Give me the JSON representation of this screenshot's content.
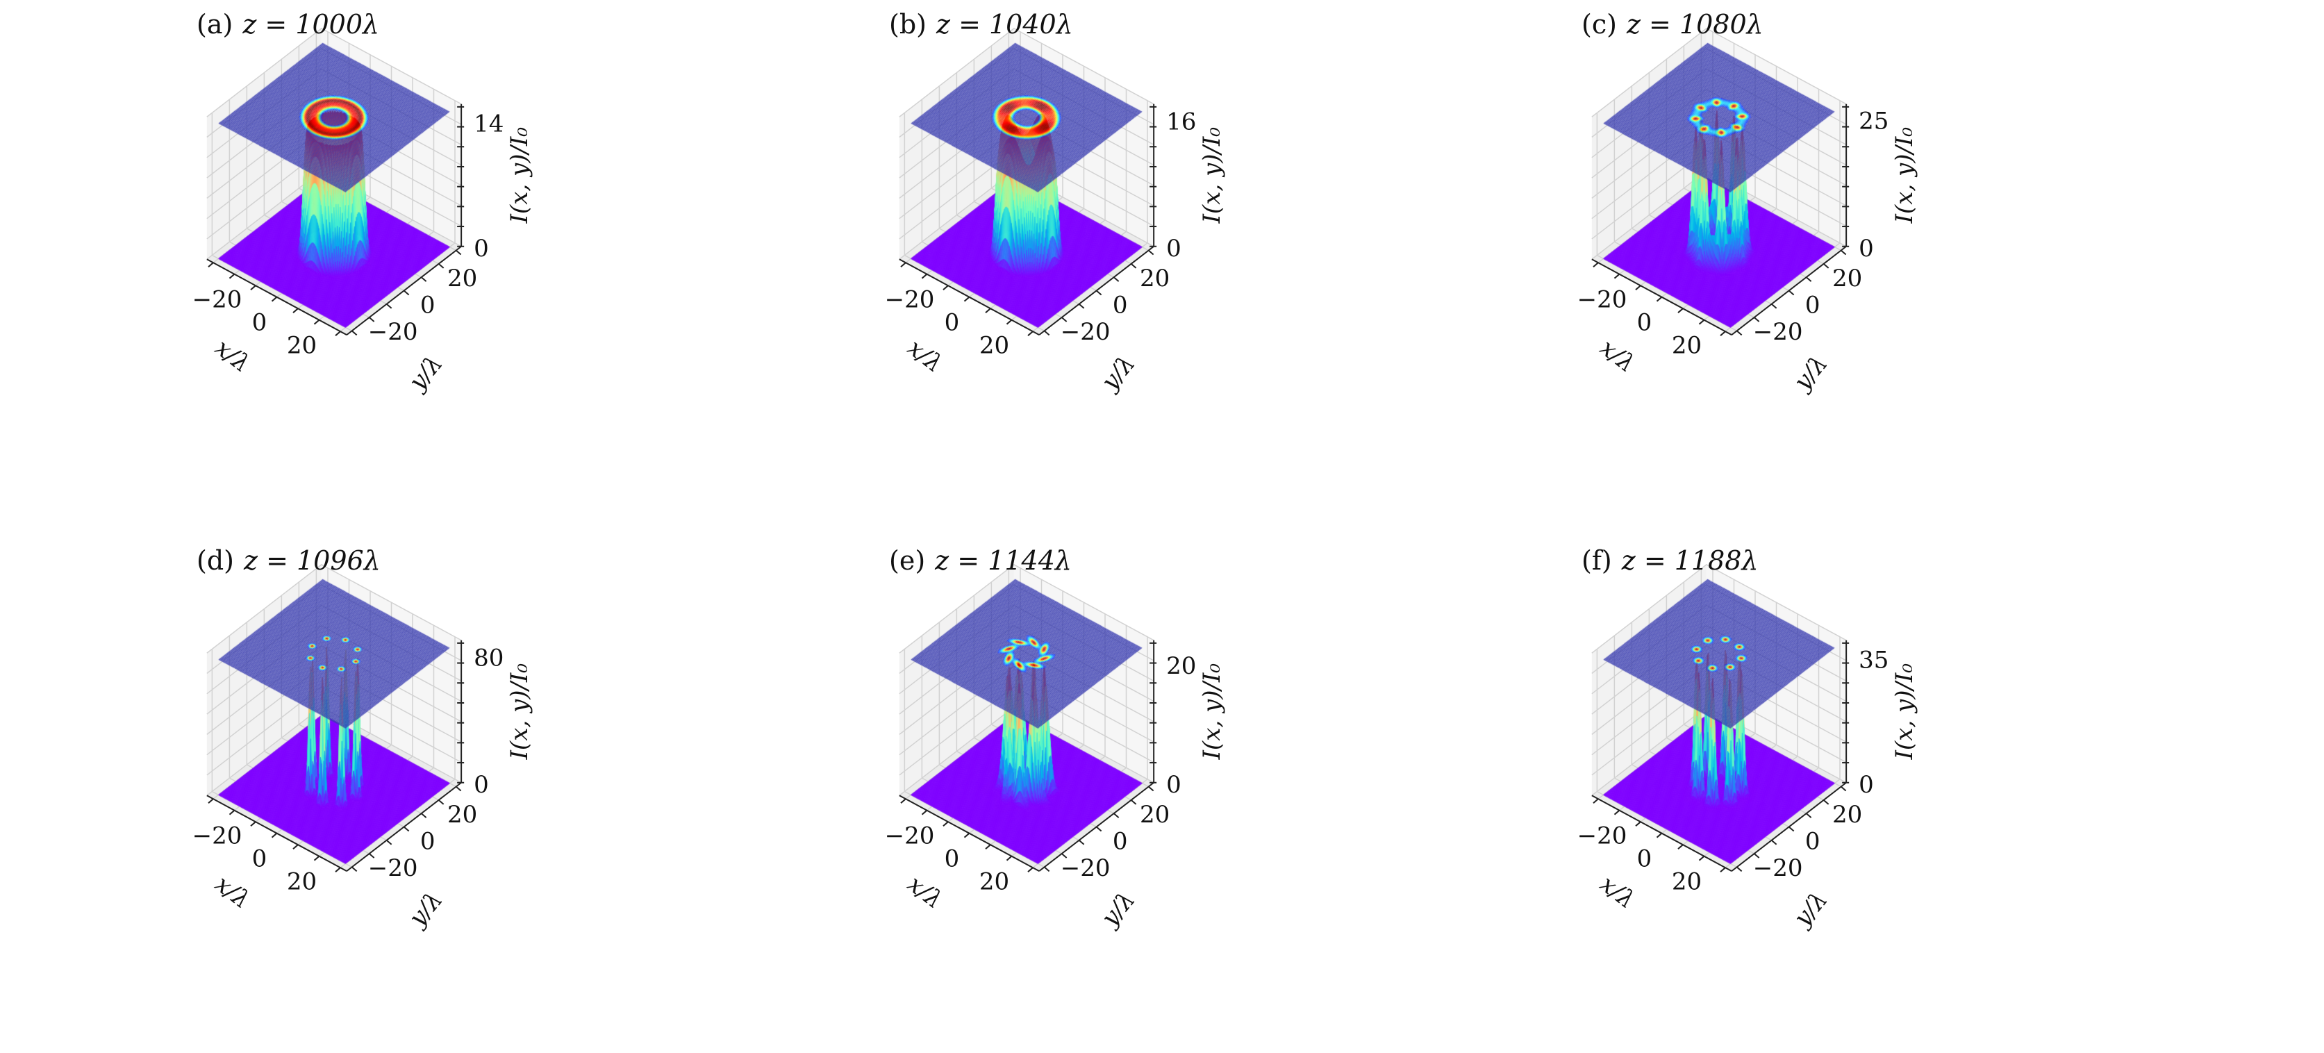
{
  "chart_data": [
    {
      "type": "surface3d",
      "panel": "(a)",
      "title": "z = 1000λ",
      "xlabel": "x/λ",
      "ylabel": "y/λ",
      "zlabel": "I(x, y)/I₀",
      "xticks": [
        "−20",
        "0",
        "20"
      ],
      "yticks": [
        "−20",
        "0",
        "20"
      ],
      "zticks": [
        "0",
        "14"
      ],
      "zlim": [
        0,
        16
      ],
      "peak": 14,
      "pattern": "ring"
    },
    {
      "type": "surface3d",
      "panel": "(b)",
      "title": "z = 1040λ",
      "xlabel": "x/λ",
      "ylabel": "y/λ",
      "zlabel": "I(x, y)/I₀",
      "xticks": [
        "−20",
        "0",
        "20"
      ],
      "yticks": [
        "−20",
        "0",
        "20"
      ],
      "zticks": [
        "0",
        "16"
      ],
      "zlim": [
        0,
        18
      ],
      "peak": 16,
      "pattern": "ring"
    },
    {
      "type": "surface3d",
      "panel": "(c)",
      "title": "z = 1080λ",
      "xlabel": "x/λ",
      "ylabel": "y/λ",
      "zlabel": "I(x, y)/I₀",
      "xticks": [
        "−20",
        "0",
        "20"
      ],
      "yticks": [
        "−20",
        "0",
        "20"
      ],
      "zticks": [
        "0",
        "25"
      ],
      "zlim": [
        0,
        28
      ],
      "peak": 25,
      "pattern": "8 lobes on ring"
    },
    {
      "type": "surface3d",
      "panel": "(d)",
      "title": "z = 1096λ",
      "xlabel": "x/λ",
      "ylabel": "y/λ",
      "zlabel": "I(x, y)/I₀",
      "xticks": [
        "−20",
        "0",
        "20"
      ],
      "yticks": [
        "−20",
        "0",
        "20"
      ],
      "zticks": [
        "0",
        "80"
      ],
      "zlim": [
        0,
        90
      ],
      "peak": 80,
      "pattern": "8 sharp peaks"
    },
    {
      "type": "surface3d",
      "panel": "(e)",
      "title": "z = 1144λ",
      "xlabel": "x/λ",
      "ylabel": "y/λ",
      "zlabel": "I(x, y)/I₀",
      "xticks": [
        "−20",
        "0",
        "20"
      ],
      "yticks": [
        "−20",
        "0",
        "20"
      ],
      "zticks": [
        "0",
        "20"
      ],
      "zlim": [
        0,
        24
      ],
      "peak": 20,
      "pattern": "8 twisted lobes"
    },
    {
      "type": "surface3d",
      "panel": "(f)",
      "title": "z = 1188λ",
      "xlabel": "x/λ",
      "ylabel": "y/λ",
      "zlabel": "I(x, y)/I₀",
      "xticks": [
        "−20",
        "0",
        "20"
      ],
      "yticks": [
        "−20",
        "0",
        "20"
      ],
      "zticks": [
        "0",
        "35"
      ],
      "zlim": [
        0,
        40
      ],
      "peak": 35,
      "pattern": "8 peaks"
    }
  ],
  "colors": {
    "floor": "#7f00ff",
    "top_plane": "#3a3db0",
    "pane": "#f2f2f2",
    "grid": "#d2d2d2"
  }
}
